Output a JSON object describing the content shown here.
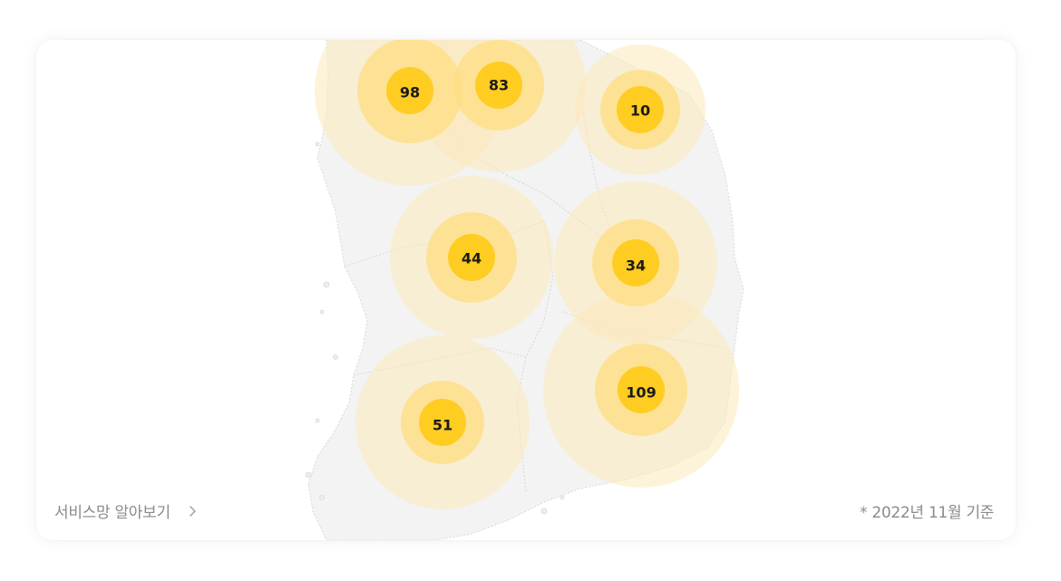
{
  "footer": {
    "service_link_label": "서비스망 알아보기",
    "basis_note": "* 2022년 11월 기준"
  },
  "icons": {
    "service_link_arrow": "chevron-right-icon"
  },
  "colors": {
    "marker_core": "#FFCC22",
    "marker_mid": "#FFE08A",
    "marker_outer": "#FBEBC2",
    "map_fill": "#F2F2F2",
    "map_border": "#D3D3D3",
    "text_muted": "#8A8A8A"
  },
  "markers": [
    {
      "id": "m98",
      "count": "98"
    },
    {
      "id": "m83",
      "count": "83"
    },
    {
      "id": "m10",
      "count": "10"
    },
    {
      "id": "m44",
      "count": "44"
    },
    {
      "id": "m34",
      "count": "34"
    },
    {
      "id": "m109",
      "count": "109"
    },
    {
      "id": "m51",
      "count": "51"
    }
  ]
}
